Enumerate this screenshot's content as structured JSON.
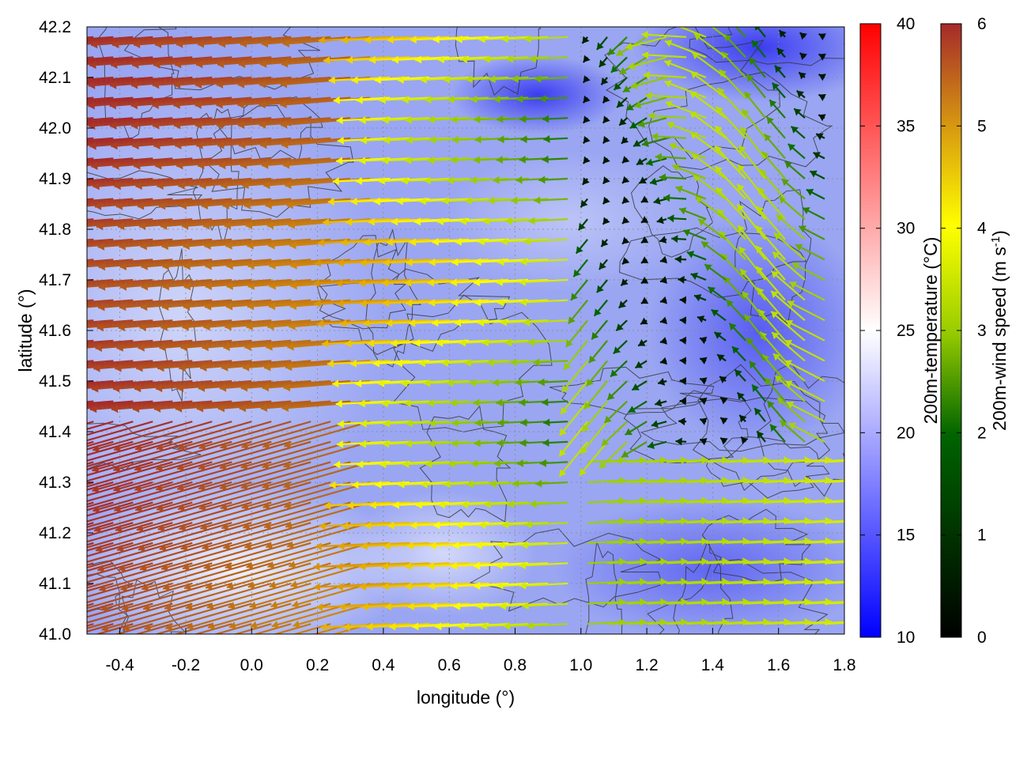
{
  "chart_data": {
    "type": "vector-field",
    "title": "",
    "xlabel": "longitude (°)",
    "ylabel": "latitude (°)",
    "xlim": [
      -0.5,
      1.8
    ],
    "ylim": [
      41.0,
      42.2
    ],
    "x_ticks": [
      "-0.4",
      "-0.2",
      "0.0",
      "0.2",
      "0.4",
      "0.6",
      "0.8",
      "1.0",
      "1.2",
      "1.4",
      "1.6",
      "1.8"
    ],
    "x_tick_values": [
      -0.4,
      -0.2,
      0.0,
      0.2,
      0.4,
      0.6,
      0.8,
      1.0,
      1.2,
      1.4,
      1.6,
      1.8
    ],
    "y_ticks": [
      "41.0",
      "41.1",
      "41.2",
      "41.3",
      "41.4",
      "41.5",
      "41.6",
      "41.7",
      "41.8",
      "41.9",
      "42.0",
      "42.1",
      "42.2"
    ],
    "y_tick_values": [
      41.0,
      41.1,
      41.2,
      41.3,
      41.4,
      41.5,
      41.6,
      41.7,
      41.8,
      41.9,
      42.0,
      42.1,
      42.2
    ],
    "grid": true,
    "temperature_colorbar": {
      "label": "200m-temperature (°C)",
      "range": [
        10,
        40
      ],
      "ticks": [
        "10",
        "15",
        "20",
        "25",
        "30",
        "35",
        "40"
      ],
      "tick_values": [
        10,
        15,
        20,
        25,
        30,
        35,
        40
      ],
      "colors": [
        "#0000ff",
        "#ffffff",
        "#ff0000"
      ]
    },
    "wind_colorbar": {
      "label_main": "200m-wind speed (m s",
      "label_sup": "-1",
      "label_end": ")",
      "range": [
        0,
        6
      ],
      "ticks": [
        "0",
        "1",
        "2",
        "3",
        "4",
        "5",
        "6"
      ],
      "tick_values": [
        0,
        1,
        2,
        3,
        4,
        5,
        6
      ],
      "colors": [
        "#000000",
        "#006400",
        "#9acd00",
        "#ffff00",
        "#e0a000",
        "#b8651a",
        "#a52a2a"
      ]
    },
    "contour_color": "#333333"
  }
}
